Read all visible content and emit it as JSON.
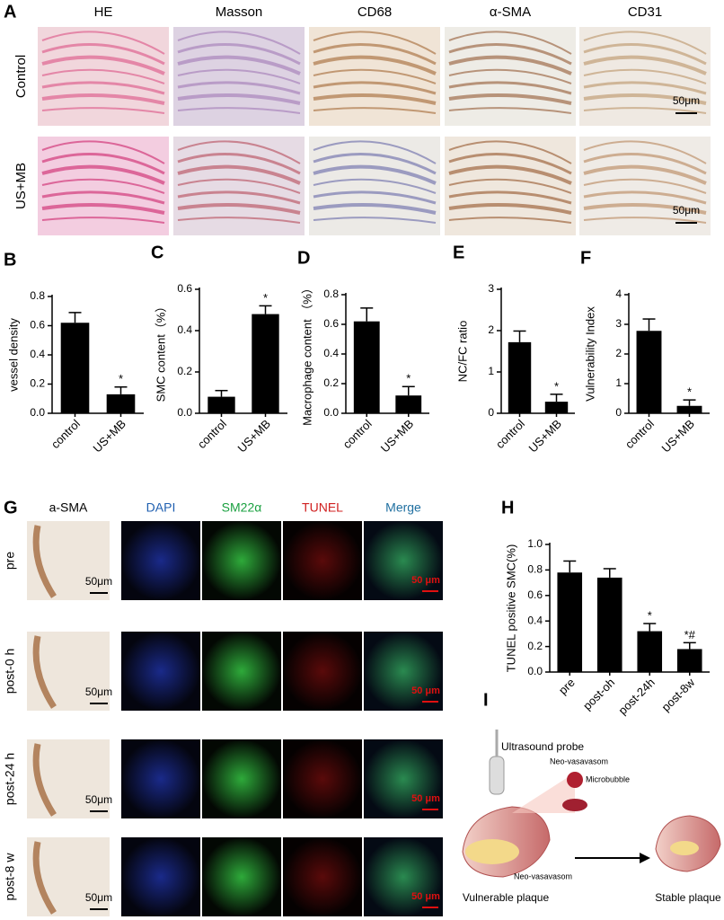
{
  "panel_a": {
    "label": "A",
    "columns": [
      "HE",
      "Masson",
      "CD68",
      "α-SMA",
      "CD31"
    ],
    "rows": [
      "Control",
      "US+MB"
    ],
    "scale_bar": "50μm"
  },
  "chart_data": [
    {
      "type": "bar",
      "panel_label": "B",
      "ylabel": "vessel density",
      "categories": [
        "control",
        "US+MB"
      ],
      "values": [
        0.62,
        0.13
      ],
      "errors": [
        0.07,
        0.05
      ],
      "annotations": [
        null,
        "*"
      ],
      "color": "#000000",
      "ylim": [
        0,
        0.8
      ],
      "yticks": [
        {
          "value": 0,
          "label": "0.0"
        },
        0.2,
        0.4,
        0.6,
        0.8
      ]
    },
    {
      "type": "bar",
      "panel_label": "C",
      "ylabel": "SMC content（%）",
      "categories": [
        "control",
        "US+MB"
      ],
      "values": [
        0.08,
        0.48
      ],
      "errors": [
        0.03,
        0.04
      ],
      "annotations": [
        null,
        "*"
      ],
      "color": "#000000",
      "ylim": [
        0,
        0.6
      ],
      "yticks": [
        {
          "value": 0,
          "label": "0.0"
        },
        0.2,
        0.4,
        0.6
      ]
    },
    {
      "type": "bar",
      "panel_label": "D",
      "ylabel": "Macrophage content （%）",
      "categories": [
        "control",
        "US+MB"
      ],
      "values": [
        0.62,
        0.12
      ],
      "errors": [
        0.09,
        0.06
      ],
      "annotations": [
        null,
        "*"
      ],
      "color": "#000000",
      "ylim": [
        0,
        0.8
      ],
      "yticks": [
        {
          "value": 0,
          "label": "0.0"
        },
        0.2,
        0.4,
        0.6,
        0.8
      ]
    },
    {
      "type": "bar",
      "panel_label": "E",
      "ylabel": "NC/FC ratio",
      "categories": [
        "control",
        "US+MB"
      ],
      "values": [
        1.72,
        0.28
      ],
      "errors": [
        0.27,
        0.18
      ],
      "annotations": [
        null,
        "*"
      ],
      "color": "#000000",
      "ylim": [
        0,
        3
      ],
      "yticks": [
        0,
        1,
        2,
        3
      ]
    },
    {
      "type": "bar",
      "panel_label": "F",
      "ylabel": "Vulnerability Index",
      "categories": [
        "control",
        "US+MB"
      ],
      "values": [
        2.78,
        0.25
      ],
      "errors": [
        0.4,
        0.2
      ],
      "annotations": [
        null,
        "*"
      ],
      "color": "#000000",
      "ylim": [
        0,
        4
      ],
      "yticks": [
        0,
        1,
        2,
        3,
        4
      ]
    },
    {
      "type": "bar",
      "panel_label": "H",
      "ylabel": "TUNEL positive SMC(%)",
      "categories": [
        "pre",
        "post-oh",
        "post-24h",
        "post-8w"
      ],
      "values": [
        0.78,
        0.74,
        0.32,
        0.18
      ],
      "errors": [
        0.09,
        0.07,
        0.06,
        0.05
      ],
      "annotations": [
        null,
        null,
        "*",
        "*#"
      ],
      "color": "#000000",
      "ylim": [
        0,
        1.0
      ],
      "yticks": [
        {
          "value": 0,
          "label": "0.0"
        },
        0.2,
        0.4,
        0.6,
        0.8,
        {
          "value": 1.0,
          "label": "1.0"
        }
      ]
    }
  ],
  "panel_g": {
    "label": "G",
    "columns": [
      "a-SMA",
      "DAPI",
      "SM22α",
      "TUNEL",
      "Merge"
    ],
    "rows": [
      "pre",
      "post-0 h",
      "post-24 h",
      "post-8 w"
    ],
    "scale_bar_brightfield": "50μm",
    "scale_bar_fluorescence": "50 μm"
  },
  "panel_i": {
    "label": "I",
    "probe": "Ultrasound probe",
    "vessel_top": "Neo-vasavasom",
    "microbubble": "Microbubble",
    "vessel_bottom": "Neo-vasavasom",
    "before": "Vulnerable plaque",
    "after": "Stable plaque"
  }
}
